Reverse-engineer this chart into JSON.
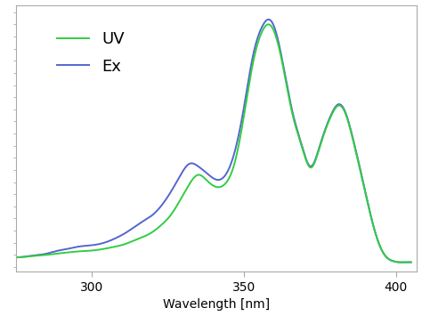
{
  "xlabel": "Wavelength [nm]",
  "ylabel": "",
  "legend_labels": [
    "UV",
    "Ex"
  ],
  "line_color_uv": "#33cc44",
  "line_color_ex": "#5566cc",
  "xlim": [
    275,
    407
  ],
  "ylim": [
    -0.02,
    1.08
  ],
  "xticks": [
    300,
    350,
    400
  ],
  "background_color": "#ffffff",
  "title": "",
  "uv_x": [
    275,
    278,
    281,
    285,
    288,
    292,
    296,
    300,
    304,
    308,
    311,
    314,
    317,
    320,
    323,
    326,
    329,
    332,
    335,
    338,
    341,
    344,
    347,
    350,
    353,
    356,
    358,
    360,
    363,
    366,
    369,
    372,
    375,
    377,
    379,
    381,
    383,
    386,
    389,
    392,
    395,
    397,
    399,
    401,
    403,
    405
  ],
  "uv_y": [
    0.04,
    0.042,
    0.046,
    0.05,
    0.055,
    0.06,
    0.065,
    0.068,
    0.075,
    0.085,
    0.095,
    0.11,
    0.125,
    0.145,
    0.175,
    0.215,
    0.275,
    0.34,
    0.38,
    0.355,
    0.33,
    0.345,
    0.43,
    0.62,
    0.84,
    0.97,
    1.0,
    0.97,
    0.82,
    0.63,
    0.5,
    0.41,
    0.495,
    0.57,
    0.63,
    0.665,
    0.645,
    0.52,
    0.36,
    0.2,
    0.08,
    0.04,
    0.025,
    0.02,
    0.02,
    0.02
  ],
  "ex_x": [
    275,
    278,
    281,
    285,
    288,
    292,
    296,
    300,
    304,
    308,
    311,
    314,
    317,
    320,
    323,
    326,
    329,
    332,
    335,
    338,
    341,
    344,
    347,
    350,
    353,
    356,
    358,
    360,
    363,
    366,
    369,
    372,
    375,
    377,
    379,
    381,
    383,
    386,
    389,
    392,
    395,
    397,
    399,
    401,
    403,
    405
  ],
  "ex_y": [
    0.04,
    0.043,
    0.048,
    0.055,
    0.065,
    0.075,
    0.085,
    0.09,
    0.1,
    0.12,
    0.14,
    0.165,
    0.19,
    0.215,
    0.255,
    0.31,
    0.375,
    0.425,
    0.415,
    0.385,
    0.36,
    0.38,
    0.475,
    0.655,
    0.87,
    0.99,
    1.02,
    0.99,
    0.83,
    0.64,
    0.505,
    0.415,
    0.5,
    0.575,
    0.635,
    0.67,
    0.65,
    0.525,
    0.365,
    0.2,
    0.08,
    0.04,
    0.025,
    0.02,
    0.02,
    0.02
  ]
}
